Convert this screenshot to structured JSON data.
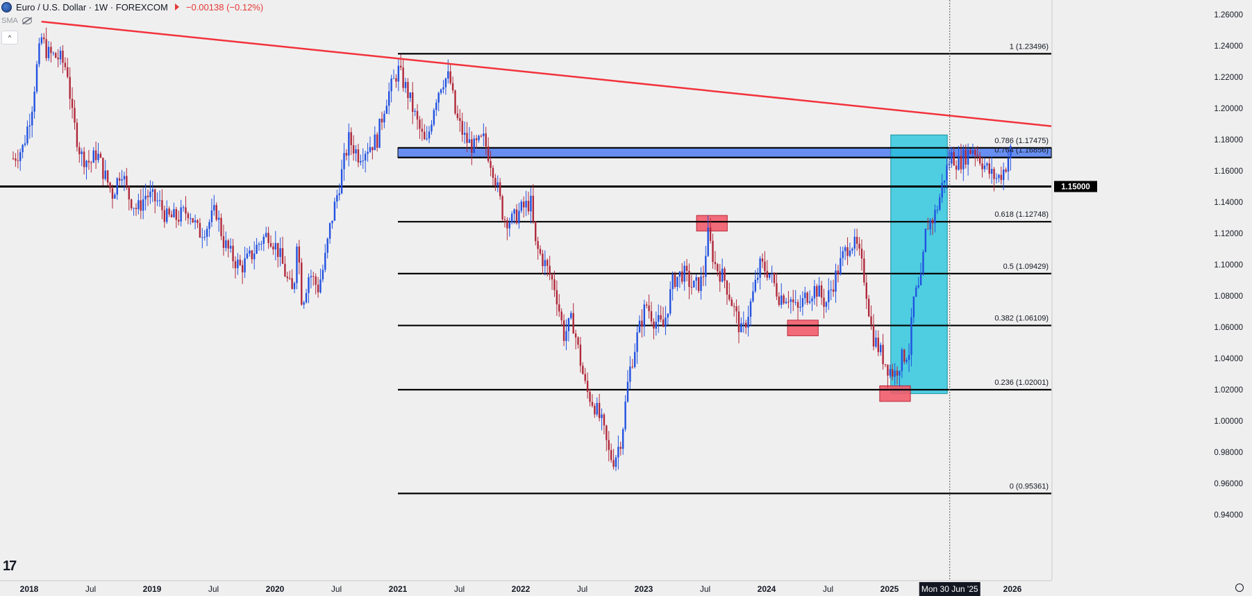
{
  "header": {
    "symbol": "Euro / U.S. Dollar · 1W · FOREXCOM",
    "change": "−0.00138 (−0.12%)",
    "indicator": "SMA"
  },
  "colors": {
    "background": "#efefef",
    "bull": "#2151e0",
    "bear": "#b0283a",
    "trendline": "#f2323c",
    "fib": "#000000",
    "blue_zone": "#4f7cf0",
    "cyan_zone": "#25c6dc",
    "red_box": "#f25c6c"
  },
  "chart_data": {
    "type": "candlestick",
    "symbol": "EURUSD",
    "interval": "1W",
    "ylim": [
      0.94,
      1.265
    ],
    "y_ticks": [
      "1.26000",
      "1.24000",
      "1.22000",
      "1.20000",
      "1.18000",
      "1.16000",
      "1.14000",
      "1.12000",
      "1.10000",
      "1.08000",
      "1.06000",
      "1.04000",
      "1.02000",
      "1.00000",
      "0.98000",
      "0.96000",
      "0.94000"
    ],
    "x_ticks": [
      {
        "label": "2018",
        "t": 2018.0
      },
      {
        "label": "Jul",
        "t": 2018.5
      },
      {
        "label": "2019",
        "t": 2019.0
      },
      {
        "label": "Jul",
        "t": 2019.5
      },
      {
        "label": "2020",
        "t": 2020.0
      },
      {
        "label": "Jul",
        "t": 2020.5
      },
      {
        "label": "2021",
        "t": 2021.0
      },
      {
        "label": "Jul",
        "t": 2021.5
      },
      {
        "label": "2022",
        "t": 2022.0
      },
      {
        "label": "Jul",
        "t": 2022.5
      },
      {
        "label": "2023",
        "t": 2023.0
      },
      {
        "label": "Jul",
        "t": 2023.5
      },
      {
        "label": "2024",
        "t": 2024.0
      },
      {
        "label": "Jul",
        "t": 2024.5
      },
      {
        "label": "2025",
        "t": 2025.0
      },
      {
        "label": "2026",
        "t": 2026.0
      }
    ],
    "x_cursor_label": {
      "label": "Mon 30 Jun '25",
      "t": 2025.49
    },
    "price_label": {
      "label": "1.15000",
      "value": 1.15
    },
    "fib_levels": [
      {
        "label": "1 (1.23496)",
        "value": 1.23496
      },
      {
        "label": "0.786 (1.17475)",
        "value": 1.17475
      },
      {
        "label": "0.764 (1.16856)",
        "value": 1.16856
      },
      {
        "label": "0.618 (1.12748)",
        "value": 1.12748
      },
      {
        "label": "0.5 (1.09429)",
        "value": 1.09429
      },
      {
        "label": "0.382 (1.06109)",
        "value": 1.06109
      },
      {
        "label": "0.236 (1.02001)",
        "value": 1.02001
      },
      {
        "label": "0 (0.95361)",
        "value": 0.95361
      }
    ],
    "fib_x_start": 2021.0,
    "horizontal_line": 1.15,
    "trendline": {
      "t1": 2018.1,
      "p1": 1.2555,
      "t2": 2026.7,
      "p2": 1.1855
    },
    "blue_zone": {
      "t1": 2021.0,
      "t2": 2026.7,
      "p1": 1.16856,
      "p2": 1.17475
    },
    "cyan_zone": {
      "t1": 2025.01,
      "t2": 2025.47,
      "p1": 1.0175,
      "p2": 1.183
    },
    "red_boxes": [
      {
        "t1": 2023.43,
        "t2": 2023.68,
        "p1": 1.1215,
        "p2": 1.1315
      },
      {
        "t1": 2024.17,
        "t2": 2024.42,
        "p1": 1.0545,
        "p2": 1.0645
      },
      {
        "t1": 2024.92,
        "t2": 2025.17,
        "p1": 1.0125,
        "p2": 1.0225
      }
    ],
    "path": [
      [
        2017.87,
        1.168
      ],
      [
        2017.95,
        1.175
      ],
      [
        2018.02,
        1.2
      ],
      [
        2018.06,
        1.225
      ],
      [
        2018.1,
        1.245
      ],
      [
        2018.15,
        1.235
      ],
      [
        2018.25,
        1.232
      ],
      [
        2018.31,
        1.225
      ],
      [
        2018.35,
        1.195
      ],
      [
        2018.42,
        1.17
      ],
      [
        2018.5,
        1.165
      ],
      [
        2018.55,
        1.172
      ],
      [
        2018.6,
        1.16
      ],
      [
        2018.68,
        1.145
      ],
      [
        2018.75,
        1.162
      ],
      [
        2018.8,
        1.145
      ],
      [
        2018.88,
        1.135
      ],
      [
        2018.95,
        1.145
      ],
      [
        2019.05,
        1.14
      ],
      [
        2019.12,
        1.13
      ],
      [
        2019.2,
        1.13
      ],
      [
        2019.3,
        1.135
      ],
      [
        2019.38,
        1.12
      ],
      [
        2019.45,
        1.125
      ],
      [
        2019.52,
        1.135
      ],
      [
        2019.58,
        1.115
      ],
      [
        2019.65,
        1.105
      ],
      [
        2019.72,
        1.098
      ],
      [
        2019.8,
        1.105
      ],
      [
        2019.88,
        1.115
      ],
      [
        2019.95,
        1.12
      ],
      [
        2020.03,
        1.108
      ],
      [
        2020.1,
        1.09
      ],
      [
        2020.15,
        1.08
      ],
      [
        2020.18,
        1.12
      ],
      [
        2020.22,
        1.075
      ],
      [
        2020.28,
        1.095
      ],
      [
        2020.35,
        1.085
      ],
      [
        2020.4,
        1.1
      ],
      [
        2020.45,
        1.125
      ],
      [
        2020.52,
        1.15
      ],
      [
        2020.6,
        1.18
      ],
      [
        2020.68,
        1.17
      ],
      [
        2020.75,
        1.175
      ],
      [
        2020.83,
        1.18
      ],
      [
        2020.9,
        1.205
      ],
      [
        2020.97,
        1.218
      ],
      [
        2021.0,
        1.225
      ],
      [
        2021.08,
        1.21
      ],
      [
        2021.16,
        1.19
      ],
      [
        2021.23,
        1.175
      ],
      [
        2021.3,
        1.205
      ],
      [
        2021.36,
        1.218
      ],
      [
        2021.42,
        1.22
      ],
      [
        2021.47,
        1.195
      ],
      [
        2021.55,
        1.18
      ],
      [
        2021.62,
        1.175
      ],
      [
        2021.7,
        1.18
      ],
      [
        2021.78,
        1.16
      ],
      [
        2021.86,
        1.13
      ],
      [
        2021.93,
        1.128
      ],
      [
        2022.0,
        1.135
      ],
      [
        2022.08,
        1.14
      ],
      [
        2022.12,
        1.112
      ],
      [
        2022.2,
        1.1
      ],
      [
        2022.28,
        1.085
      ],
      [
        2022.35,
        1.055
      ],
      [
        2022.42,
        1.065
      ],
      [
        2022.48,
        1.04
      ],
      [
        2022.53,
        1.02
      ],
      [
        2022.6,
        1.01
      ],
      [
        2022.66,
        0.998
      ],
      [
        2022.72,
        0.978
      ],
      [
        2022.76,
        0.975
      ],
      [
        2022.82,
        0.99
      ],
      [
        2022.88,
        1.03
      ],
      [
        2022.95,
        1.055
      ],
      [
        2023.02,
        1.075
      ],
      [
        2023.08,
        1.065
      ],
      [
        2023.16,
        1.06
      ],
      [
        2023.24,
        1.09
      ],
      [
        2023.32,
        1.095
      ],
      [
        2023.4,
        1.085
      ],
      [
        2023.48,
        1.09
      ],
      [
        2023.52,
        1.12
      ],
      [
        2023.58,
        1.1
      ],
      [
        2023.66,
        1.09
      ],
      [
        2023.74,
        1.07
      ],
      [
        2023.8,
        1.055
      ],
      [
        2023.87,
        1.075
      ],
      [
        2023.95,
        1.1
      ],
      [
        2024.02,
        1.095
      ],
      [
        2024.1,
        1.08
      ],
      [
        2024.18,
        1.08
      ],
      [
        2024.25,
        1.07
      ],
      [
        2024.32,
        1.08
      ],
      [
        2024.4,
        1.085
      ],
      [
        2024.48,
        1.075
      ],
      [
        2024.55,
        1.09
      ],
      [
        2024.62,
        1.105
      ],
      [
        2024.68,
        1.115
      ],
      [
        2024.74,
        1.11
      ],
      [
        2024.8,
        1.09
      ],
      [
        2024.86,
        1.055
      ],
      [
        2024.92,
        1.045
      ],
      [
        2024.98,
        1.035
      ],
      [
        2025.04,
        1.03
      ],
      [
        2025.1,
        1.04
      ],
      [
        2025.16,
        1.045
      ],
      [
        2025.2,
        1.08
      ],
      [
        2025.25,
        1.085
      ],
      [
        2025.3,
        1.125
      ],
      [
        2025.36,
        1.13
      ],
      [
        2025.4,
        1.14
      ],
      [
        2025.44,
        1.155
      ],
      [
        2025.5,
        1.17
      ],
      [
        2025.56,
        1.165
      ],
      [
        2025.62,
        1.17
      ],
      [
        2025.68,
        1.175
      ],
      [
        2025.76,
        1.165
      ],
      [
        2025.82,
        1.158
      ],
      [
        2025.88,
        1.155
      ],
      [
        2025.94,
        1.162
      ],
      [
        2025.97,
        1.17
      ],
      [
        2026.0,
        1.175
      ]
    ]
  }
}
